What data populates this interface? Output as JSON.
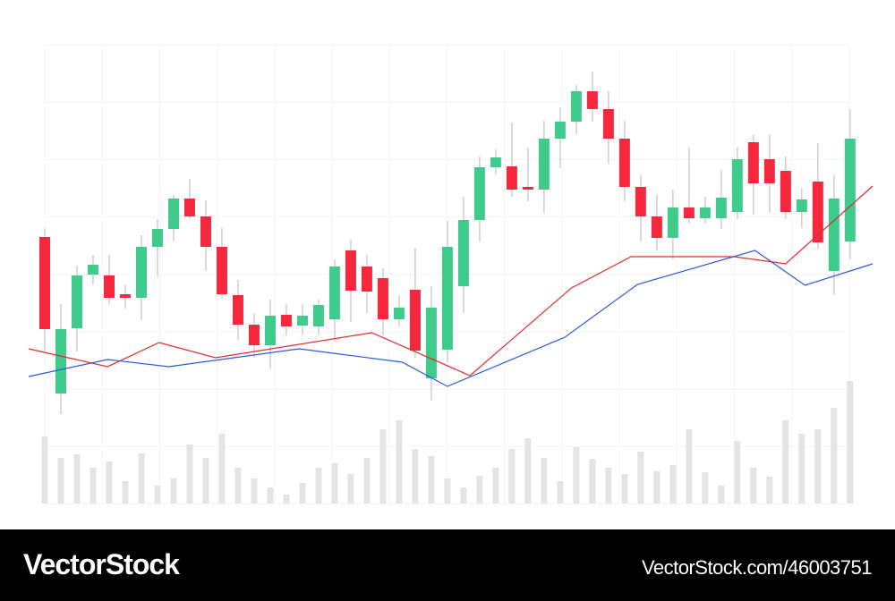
{
  "chart_data": {
    "type": "candlestick",
    "x": [
      0,
      1,
      2,
      3,
      4,
      5,
      6,
      7,
      8,
      9,
      10,
      11,
      12,
      13,
      14,
      15,
      16,
      17,
      18,
      19,
      20,
      21,
      22,
      23,
      24,
      25,
      26,
      27,
      28,
      29,
      30,
      31,
      32,
      33,
      34,
      35,
      36,
      37,
      38,
      39,
      40,
      41,
      42,
      43,
      44,
      45,
      46,
      47,
      48,
      49,
      50
    ],
    "open": [
      235,
      60,
      133,
      193,
      192,
      171,
      167,
      224,
      244,
      278,
      258,
      224,
      170,
      137,
      114,
      148,
      136,
      135,
      143,
      220,
      202,
      189,
      143,
      176,
      77,
      109,
      180,
      254,
      313,
      314,
      291,
      288,
      345,
      364,
      398,
      378,
      345,
      291,
      258,
      234,
      268,
      256,
      256,
      263,
      341,
      322,
      309,
      263,
      297,
      197,
      230
    ],
    "close": [
      132,
      132,
      192,
      204,
      167,
      167,
      224,
      244,
      278,
      258,
      224,
      171,
      137,
      114,
      147,
      135,
      147,
      159,
      202,
      175,
      174,
      143,
      156,
      108,
      156,
      224,
      254,
      313,
      324,
      288,
      288,
      345,
      364,
      398,
      378,
      345,
      291,
      258,
      234,
      268,
      256,
      268,
      279,
      322,
      295,
      295,
      263,
      277,
      229,
      278,
      345
    ],
    "high": [
      245,
      160,
      203,
      215,
      215,
      182,
      237,
      255,
      282,
      300,
      276,
      245,
      187,
      150,
      165,
      160,
      160,
      165,
      210,
      232,
      215,
      200,
      170,
      223,
      180,
      253,
      280,
      325,
      333,
      363,
      335,
      365,
      380,
      405,
      420,
      398,
      365,
      305,
      282,
      288,
      335,
      280,
      310,
      335,
      350,
      350,
      325,
      290,
      340,
      305,
      378
    ],
    "low": [
      107,
      37,
      107,
      182,
      160,
      155,
      142,
      190,
      230,
      255,
      197,
      167,
      120,
      100,
      88,
      125,
      125,
      125,
      118,
      140,
      150,
      125,
      135,
      100,
      52,
      95,
      150,
      230,
      305,
      280,
      275,
      262,
      312,
      350,
      364,
      317,
      275,
      230,
      220,
      210,
      250,
      250,
      244,
      255,
      260,
      262,
      255,
      245,
      222,
      170,
      210
    ],
    "up_color": "#3ecb8c",
    "down_color": "#f5283e",
    "wick_color": "#cfcfcf",
    "xlim": [
      -1,
      51.4
    ],
    "ylim": [
      0,
      450
    ],
    "volume": {
      "values": [
        75,
        51,
        55,
        40,
        47,
        25,
        56,
        20,
        28,
        66,
        51,
        78,
        40,
        28,
        18,
        10,
        23,
        40,
        45,
        33,
        51,
        83,
        93,
        61,
        53,
        28,
        18,
        31,
        40,
        61,
        73,
        51,
        25,
        63,
        50,
        40,
        33,
        58,
        36,
        43,
        83,
        35,
        20,
        70,
        40,
        30,
        93,
        78,
        83,
        107,
        137
      ],
      "color": "#e4e4e4",
      "ylim": [
        0,
        140
      ]
    },
    "series": [
      {
        "color": "#e8292e",
        "x": [
          -1,
          3.9,
          7.1,
          10.6,
          20.3,
          26.4,
          32.7,
          36.4,
          42.8,
          46,
          51.4
        ],
        "values": [
          110,
          90,
          117,
          100,
          128,
          80,
          178,
          213,
          213,
          205,
          292
        ]
      },
      {
        "color": "#2a5bd7",
        "x": [
          -1,
          3.9,
          7.7,
          15.8,
          22.2,
          25,
          32.3,
          36.8,
          44.1,
          47.2,
          51.4
        ],
        "values": [
          79,
          98,
          90,
          110,
          95,
          68,
          123,
          182,
          220,
          181,
          205
        ]
      }
    ],
    "grid": true
  },
  "footer": {
    "brand": "VectorStock",
    "id": "VectorStock.com/46003751"
  }
}
